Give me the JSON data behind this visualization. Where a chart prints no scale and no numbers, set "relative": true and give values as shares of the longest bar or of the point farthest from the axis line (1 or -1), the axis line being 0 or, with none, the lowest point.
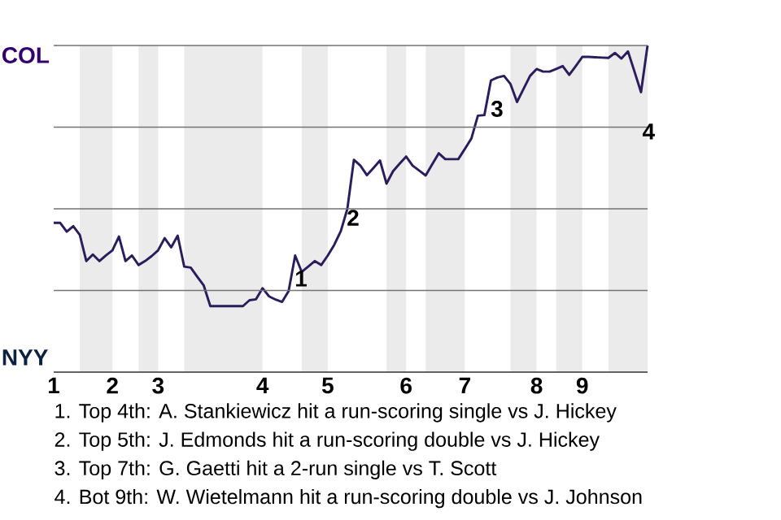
{
  "chart_data": {
    "type": "line",
    "relative": true,
    "color": "#2a1d5c",
    "grid": "y",
    "marker": "none",
    "line_style": "solid",
    "categories": [
      "1",
      null,
      null,
      null,
      null,
      null,
      null,
      null,
      null,
      "2",
      null,
      null,
      null,
      null,
      null,
      null,
      "3",
      null,
      null,
      null,
      null,
      null,
      null,
      null,
      null,
      null,
      null,
      null,
      null,
      null,
      null,
      null,
      "4",
      null,
      null,
      null,
      null,
      null,
      null,
      null,
      null,
      null,
      "5",
      null,
      null,
      null,
      null,
      null,
      null,
      null,
      null,
      null,
      null,
      null,
      "6",
      null,
      null,
      null,
      null,
      null,
      null,
      null,
      null,
      "7",
      null,
      null,
      null,
      null,
      null,
      null,
      null,
      null,
      null,
      null,
      "8",
      null,
      null,
      null,
      null,
      null,
      null,
      "9",
      null,
      null,
      null,
      null,
      null,
      null,
      null,
      null,
      null,
      null
    ],
    "values": [
      0.457,
      0.457,
      0.43,
      0.447,
      0.42,
      0.34,
      0.36,
      0.34,
      0.357,
      0.373,
      0.415,
      0.34,
      0.357,
      0.328,
      0.34,
      0.355,
      0.373,
      0.41,
      0.382,
      0.418,
      0.323,
      0.32,
      0.292,
      0.265,
      0.202,
      0.202,
      0.202,
      0.202,
      0.202,
      0.202,
      0.22,
      0.223,
      0.257,
      0.232,
      0.222,
      0.215,
      0.248,
      0.357,
      0.307,
      0.323,
      0.34,
      0.328,
      0.357,
      0.39,
      0.432,
      0.5,
      0.65,
      0.632,
      0.603,
      0.625,
      0.648,
      0.577,
      0.615,
      0.638,
      0.66,
      0.632,
      0.617,
      0.602,
      0.636,
      0.67,
      0.652,
      0.652,
      0.652,
      0.683,
      0.715,
      0.785,
      0.787,
      0.893,
      0.902,
      0.907,
      0.882,
      0.827,
      0.867,
      0.907,
      0.928,
      0.92,
      0.92,
      0.928,
      0.937,
      0.91,
      0.937,
      0.965,
      0.965,
      0.964,
      0.963,
      0.962,
      0.977,
      0.96,
      0.982,
      0.92,
      0.857,
      1
    ],
    "annotations": [
      "COL",
      "NYY",
      "1",
      "2",
      "3",
      "4",
      "1. Top 4th: A. Stankiewicz hit a run-scoring single vs J. Hickey",
      "2. Top 5th: J. Edmonds hit a run-scoring double vs J. Hickey",
      "3. Top 7th: G. Gaetti hit a 2-run single vs T. Scott",
      "4. Bot 9th: W. Wietelmann hit a run-scoring double vs J. Johnson"
    ]
  }
}
